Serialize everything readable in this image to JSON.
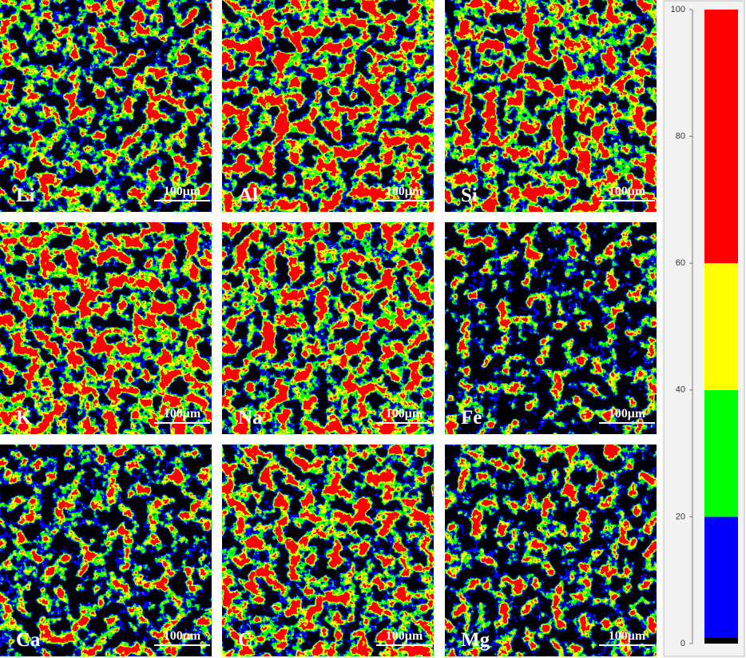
{
  "panels": [
    {
      "element": "Li",
      "scale_bar": "100μm"
    },
    {
      "element": "Al",
      "scale_bar": "100μm"
    },
    {
      "element": "Si",
      "scale_bar": "100μm"
    },
    {
      "element": "K",
      "scale_bar": "100μm"
    },
    {
      "element": "Na",
      "scale_bar": "100μm"
    },
    {
      "element": "Fe",
      "scale_bar": "100μm"
    },
    {
      "element": "Ca",
      "scale_bar": "100μm"
    },
    {
      "element": "C",
      "scale_bar": "100μm"
    },
    {
      "element": "Mg",
      "scale_bar": "100μm"
    }
  ],
  "colorbar": {
    "lim": [
      0,
      100
    ],
    "ticks": [
      0,
      20,
      40,
      60,
      80,
      100
    ],
    "bands": [
      {
        "from": 0,
        "to": 1,
        "color": "#000000"
      },
      {
        "from": 1,
        "to": 20,
        "color": "#0000ff"
      },
      {
        "from": 20,
        "to": 40,
        "color": "#00ff00"
      },
      {
        "from": 40,
        "to": 60,
        "color": "#ffff00"
      },
      {
        "from": 60,
        "to": 100,
        "color": "#ff0000"
      }
    ]
  }
}
